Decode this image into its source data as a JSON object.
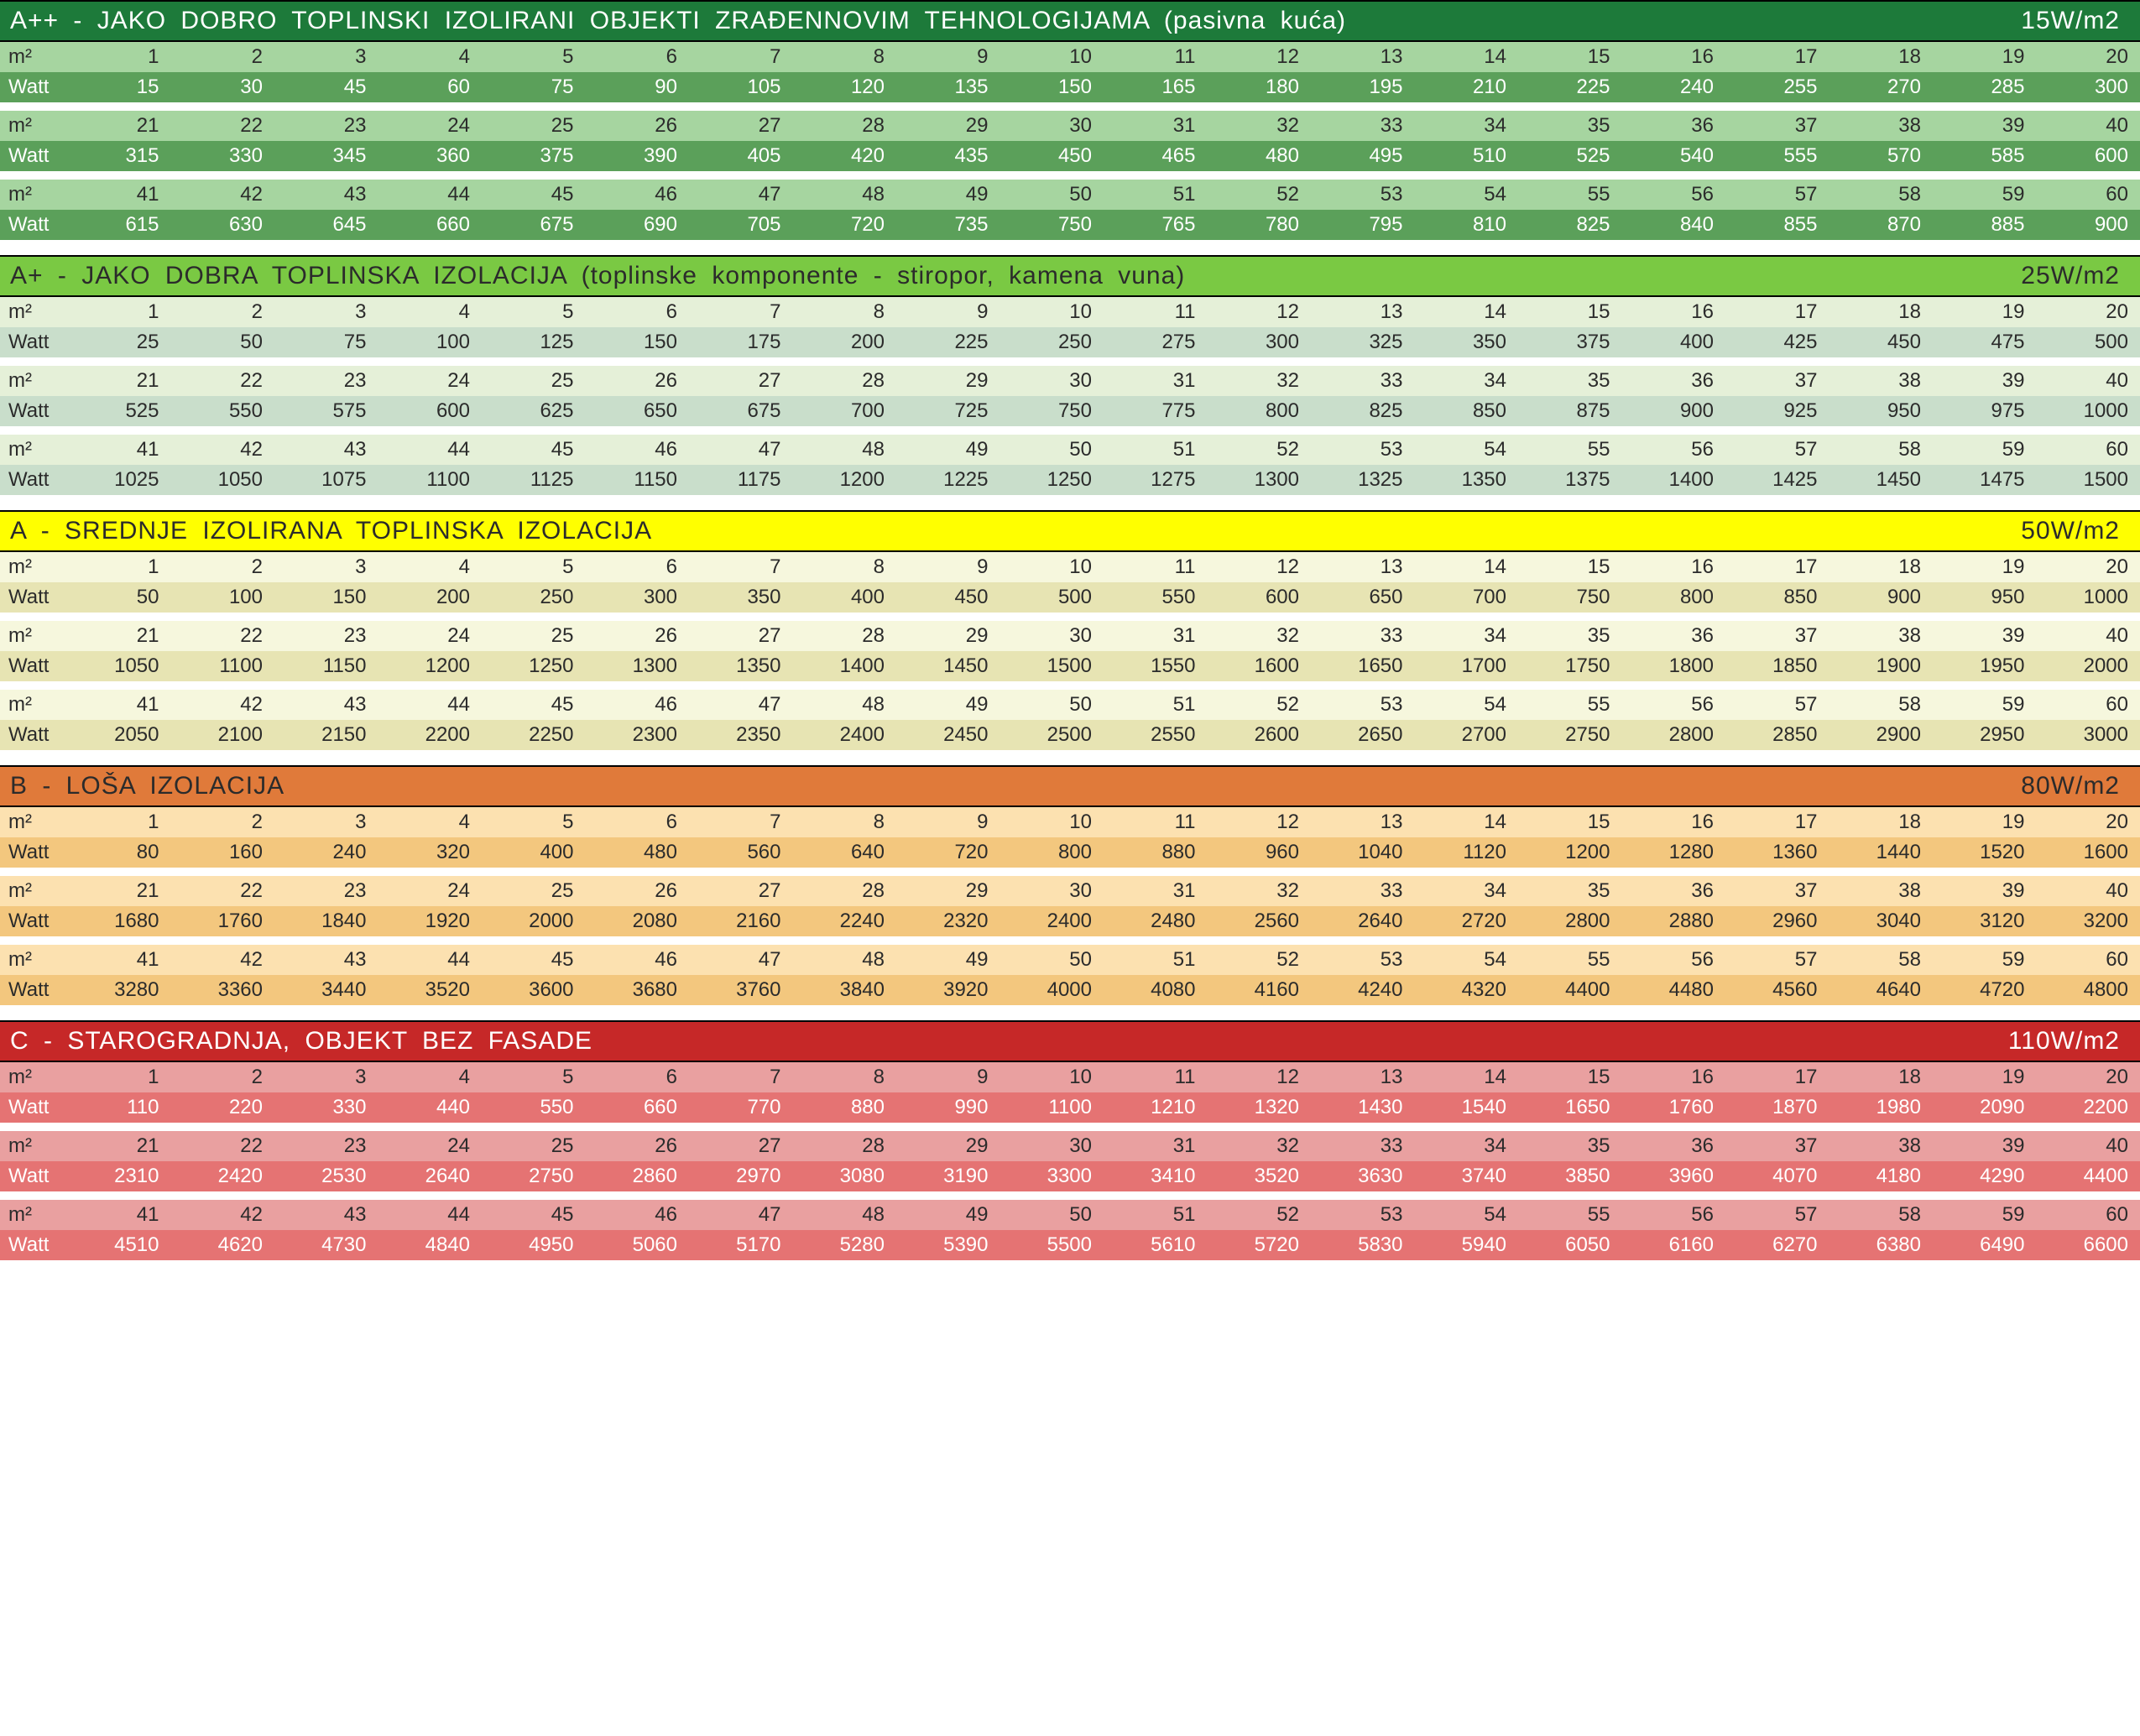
{
  "labels": {
    "m2": "m²",
    "watt": "Watt"
  },
  "columns_per_row": 20,
  "m2_ranges": [
    [
      1,
      20
    ],
    [
      21,
      40
    ],
    [
      41,
      60
    ]
  ],
  "sections": [
    {
      "id": "app",
      "title": "A++ - JAKO  DOBRO  TOPLINSKI  IZOLIRANI OBJEKTI  ZRAĐENNOVIM  TEHNOLOGIJAMA  (pasivna  kuća)",
      "right": "15W/m2",
      "watt_per_m2": 15,
      "colors": {
        "header_bg": "#1d7a3a",
        "header_text": "#ffffff",
        "m2_bg": "#a6d5a0",
        "m2_text": "#2b2b2b",
        "watt_bg": "#5ba05a",
        "watt_text": "#ffffff"
      }
    },
    {
      "id": "ap",
      "title": "A+ - JAKO  DOBRA  TOPLINSKA  IZOLACIJA  (toplinske   komponente  - stiropor,   kamena vuna)",
      "right": "25W/m2",
      "watt_per_m2": 25,
      "colors": {
        "header_bg": "#7ac943",
        "header_text": "#2b2b2b",
        "m2_bg": "#e5f0d8",
        "m2_text": "#2b2b2b",
        "watt_bg": "#c9decb",
        "watt_text": "#2b2b2b"
      }
    },
    {
      "id": "a",
      "title": "A - SREDNJE  IZOLIRANA  TOPLINSKA  IZOLACIJA",
      "right": "50W/m2",
      "watt_per_m2": 50,
      "colors": {
        "header_bg": "#ffff00",
        "header_text": "#2b2b2b",
        "m2_bg": "#f6f7dd",
        "m2_text": "#2b2b2b",
        "watt_bg": "#e7e4b3",
        "watt_text": "#2b2b2b"
      }
    },
    {
      "id": "b",
      "title": "B - LOŠA  IZOLACIJA",
      "right": "80W/m2",
      "watt_per_m2": 80,
      "colors": {
        "header_bg": "#e07a3a",
        "header_text": "#2b2b2b",
        "m2_bg": "#fce1b0",
        "m2_text": "#2b2b2b",
        "watt_bg": "#f3c77e",
        "watt_text": "#2b2b2b"
      }
    },
    {
      "id": "c",
      "title": "C - STAROGRADNJA,   OBJEKT   BEZ   FASADE",
      "right": "110W/m2",
      "watt_per_m2": 110,
      "colors": {
        "header_bg": "#c62828",
        "header_text": "#ffffff",
        "m2_bg": "#e9a0a0",
        "m2_text": "#2b2b2b",
        "watt_bg": "#e57373",
        "watt_text": "#ffffff"
      }
    }
  ]
}
